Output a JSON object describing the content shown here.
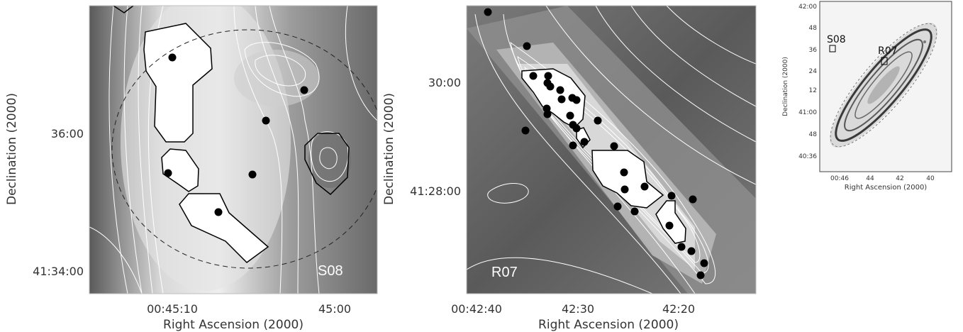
{
  "figure": {
    "panel_left": {
      "label": "S08",
      "xlabel": "Right Ascension (2000)",
      "ylabel": "Declination (2000)",
      "xticks": [
        "00:45:10",
        "45:00"
      ],
      "yticks": [
        "36:00",
        "41:34:00"
      ]
    },
    "panel_mid": {
      "label": "R07",
      "xlabel": "Right Ascension (2000)",
      "ylabel": "Declination (2000)",
      "xticks": [
        "00:42:40",
        "42:30",
        "42:20"
      ],
      "yticks": [
        "30:00",
        "41:28:00"
      ]
    },
    "panel_right": {
      "xlabel": "Right Ascension (2000)",
      "ylabel": "Declination (2000)",
      "xticks": [
        "00:46",
        "44",
        "42",
        "40"
      ],
      "yticks": [
        "42:00",
        "48",
        "36",
        "24",
        "12",
        "41:00",
        "48",
        "40:36"
      ],
      "box_labels": [
        "S08",
        "R07"
      ]
    }
  },
  "colors": {
    "background_dark": "#4a4a4a",
    "background_mid": "#8a8a8a",
    "contour": "#ffffff",
    "region_outline": "#000000",
    "marker": "#000000"
  }
}
